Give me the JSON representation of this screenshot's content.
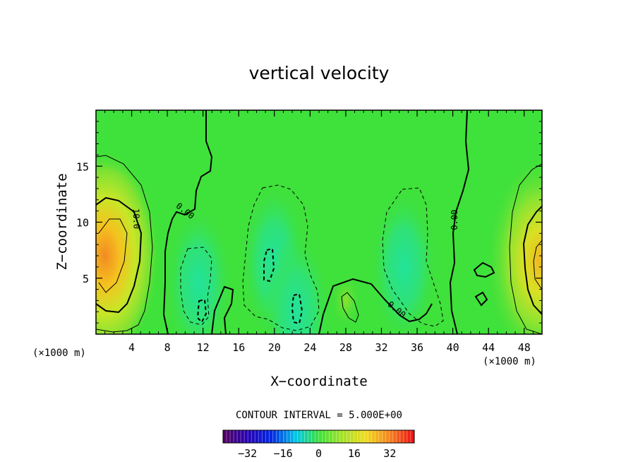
{
  "chart_data": {
    "type": "heatmap",
    "title": "vertical velocity",
    "xlabel": "X−coordinate",
    "ylabel": "Z−coordinate",
    "x_unit_left": "(×1000 m)",
    "x_unit_right": "(×1000 m)",
    "xlim": [
      0,
      50
    ],
    "ylim": [
      0,
      20
    ],
    "xticks": [
      4,
      8,
      12,
      16,
      20,
      24,
      28,
      32,
      36,
      40,
      44,
      48
    ],
    "yticks": [
      5,
      10,
      15
    ],
    "xtick_labels": [
      "4",
      "8",
      "12",
      "16",
      "20",
      "24",
      "28",
      "32",
      "36",
      "40",
      "44",
      "48"
    ],
    "ytick_labels": [
      "5",
      "10",
      "15"
    ],
    "contour_note": "CONTOUR INTERVAL = 5.000E+00",
    "contour_interval": 5,
    "contour_labels": [
      {
        "text": "10.0",
        "x": 4.2,
        "z": 10.3,
        "rotate": 88
      },
      {
        "text": "0.00",
        "x": 9.8,
        "z": 10.8,
        "rotate": 38
      },
      {
        "text": "0.00",
        "x": 40.5,
        "z": 10.2,
        "rotate": -90
      },
      {
        "text": "0.00",
        "x": 33.5,
        "z": 2.0,
        "rotate": 40
      }
    ],
    "colorbar": {
      "range": [
        -43,
        43
      ],
      "ticks": [
        -32,
        -16,
        0,
        16,
        32
      ],
      "tick_labels": [
        "−32",
        "−16",
        "0",
        "16",
        "32"
      ]
    },
    "features": [
      {
        "kind": "updraft",
        "x": 1.0,
        "z": 7.0,
        "peak": 28
      },
      {
        "kind": "updraft",
        "x": 49.8,
        "z": 6.5,
        "peak": 24
      },
      {
        "kind": "downdraft",
        "x": 20.0,
        "z": 6.5,
        "peak": -6
      },
      {
        "kind": "downdraft",
        "x": 34.5,
        "z": 6.0,
        "peak": -6
      },
      {
        "kind": "downdraft",
        "x": 11.5,
        "z": 4.5,
        "peak": -4
      },
      {
        "kind": "downdraft",
        "x": 22.5,
        "z": 2.0,
        "peak": -5
      }
    ]
  },
  "colors": {
    "background_field": "#3fe13b",
    "frame": "#000000"
  }
}
